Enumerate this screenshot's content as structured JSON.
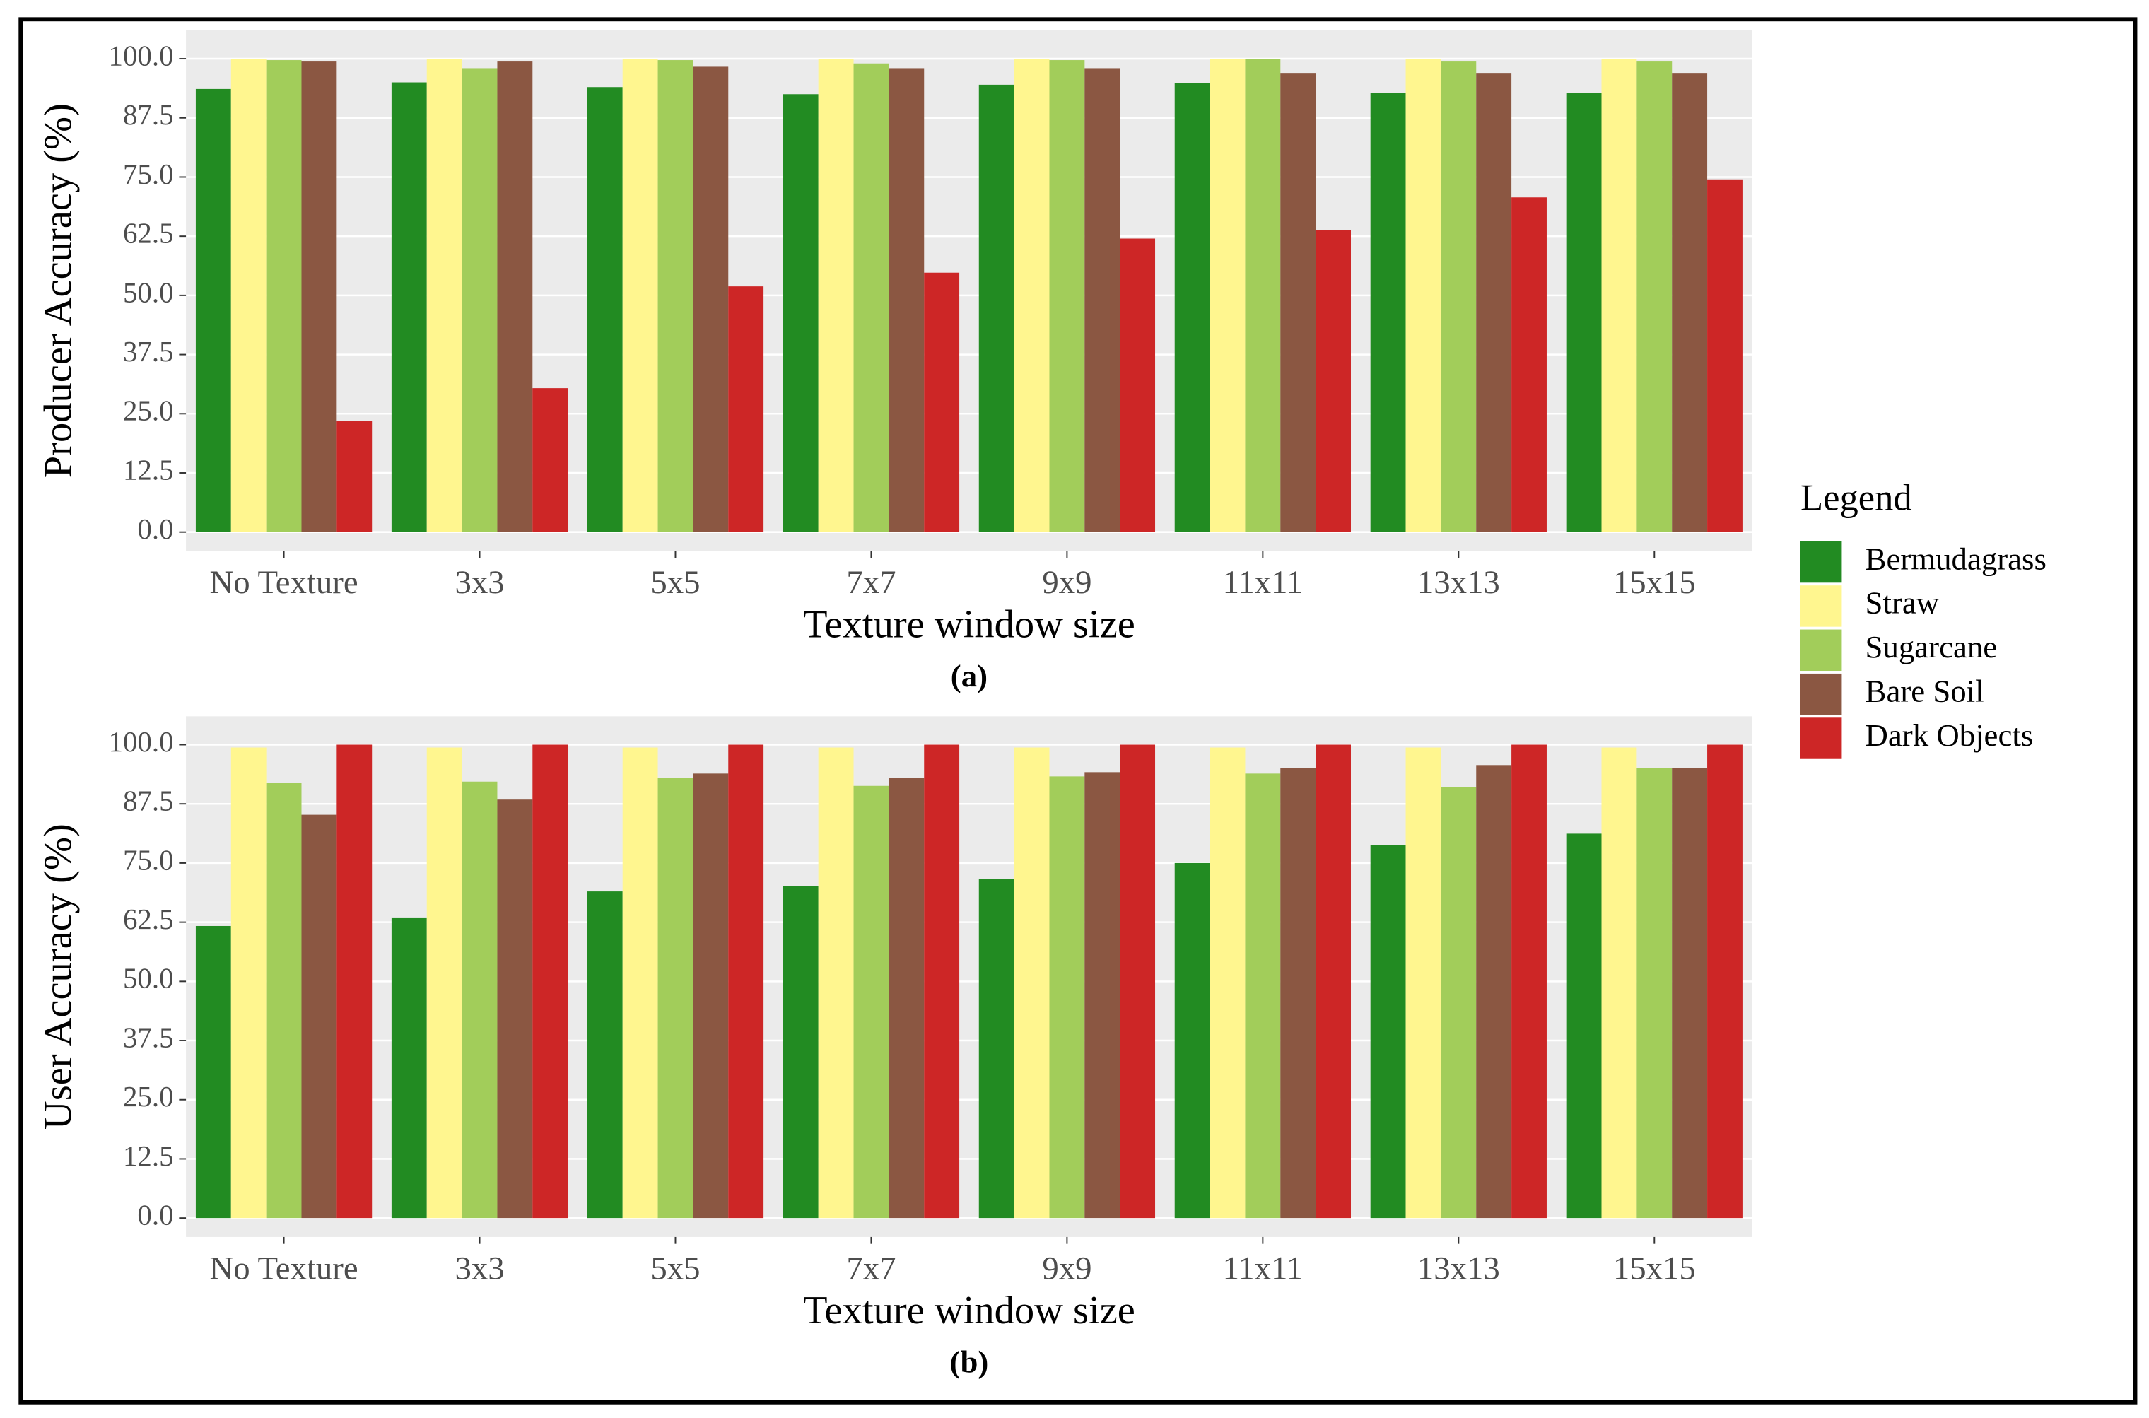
{
  "chart_data": [
    {
      "type": "bar",
      "ylabel": "Producer Accuracy (%)",
      "xlabel": "Texture window size",
      "caption": "(a)",
      "legend_title": "Legend",
      "categories": [
        "No Texture",
        "3x3",
        "5x5",
        "7x7",
        "9x9",
        "11x11",
        "13x13",
        "15x15"
      ],
      "ylim": [
        -4,
        106
      ],
      "yticks": [
        {
          "value": 0,
          "label": "0.0"
        },
        12.5,
        {
          "value": 25,
          "label": "25.0"
        },
        37.5,
        {
          "value": 50,
          "label": "50.0"
        },
        62.5,
        {
          "value": 75,
          "label": "75.0"
        },
        87.5,
        {
          "value": 100,
          "label": "100.0"
        }
      ],
      "grid": true,
      "series": [
        {
          "name": "Bermudagrass",
          "color": "#228b22",
          "values": [
            93.6,
            95,
            94,
            92.5,
            94.5,
            94.8,
            92.8,
            92.8
          ]
        },
        {
          "name": "Straw",
          "color": "#fff68f",
          "values": [
            100,
            100,
            100,
            100,
            100,
            100,
            100,
            100
          ]
        },
        {
          "name": "Sugarcane",
          "color": "#a2cd5a",
          "values": [
            99.7,
            98,
            99.7,
            99,
            99.7,
            100,
            99.4,
            99.4
          ]
        },
        {
          "name": "Bare Soil",
          "color": "#8b5742",
          "values": [
            99.4,
            99.4,
            98.3,
            98,
            98,
            97,
            97,
            97
          ]
        },
        {
          "name": "Dark Objects",
          "color": "#cd2626",
          "values": [
            23.5,
            30.4,
            51.9,
            54.8,
            62,
            63.8,
            70.7,
            74.5
          ]
        }
      ]
    },
    {
      "type": "bar",
      "ylabel": "User Accuracy (%)",
      "xlabel": "Texture window size",
      "caption": "(b)",
      "categories": [
        "No Texture",
        "3x3",
        "5x5",
        "7x7",
        "9x9",
        "11x11",
        "13x13",
        "15x15"
      ],
      "ylim": [
        -4,
        106
      ],
      "yticks": [
        {
          "value": 0,
          "label": "0.0"
        },
        12.5,
        {
          "value": 25,
          "label": "25.0"
        },
        37.5,
        {
          "value": 50,
          "label": "50.0"
        },
        62.5,
        {
          "value": 75,
          "label": "75.0"
        },
        87.5,
        {
          "value": 100,
          "label": "100.0"
        }
      ],
      "grid": true,
      "series": [
        {
          "color": "#228b22",
          "values": [
            61.7,
            63.5,
            69,
            70.1,
            71.6,
            75,
            78.8,
            81.2
          ]
        },
        {
          "color": "#fff68f",
          "values": [
            99.4,
            99.4,
            99.4,
            99.4,
            99.4,
            99.4,
            99.4,
            99.4
          ]
        },
        {
          "color": "#a2cd5a",
          "values": [
            91.9,
            92.2,
            93,
            91.3,
            93.3,
            93.9,
            91,
            95
          ]
        },
        {
          "color": "#8b5742",
          "values": [
            85.2,
            88.4,
            93.9,
            93,
            94.2,
            95,
            95.7,
            95
          ]
        },
        {
          "color": "#cd2626",
          "values": [
            100,
            100,
            100,
            100,
            100,
            100,
            100,
            100
          ]
        }
      ]
    }
  ]
}
